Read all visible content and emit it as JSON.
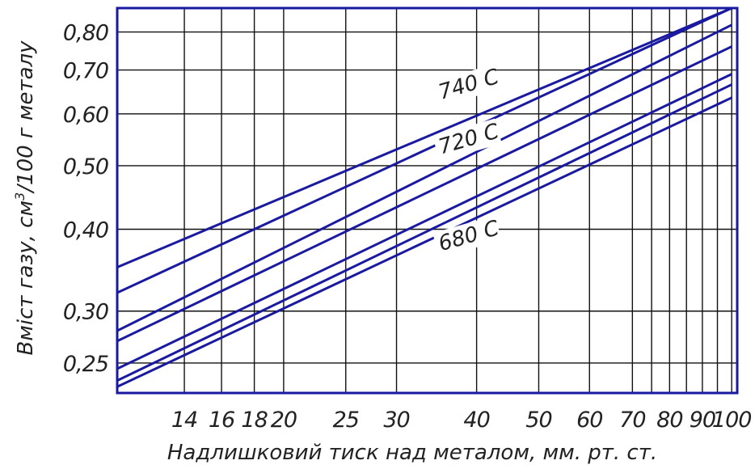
{
  "chart_data": {
    "type": "line",
    "title": "",
    "xlabel": "Надлишковий тиск над металом, мм. рт. ст.",
    "ylabel": "Вміст газу, см³/100 г металу",
    "ylabel_parts": {
      "before": "Вміст газу, см",
      "sup": "3",
      "after": "/100 г металу"
    },
    "x_scale": "log",
    "y_scale": "log",
    "xlim": [
      11,
      102
    ],
    "ylim": [
      0.225,
      0.87
    ],
    "x_ticks": [
      14,
      16,
      18,
      20,
      25,
      30,
      40,
      50,
      60,
      70,
      80,
      90,
      100
    ],
    "x_tick_labels": [
      "14",
      "16",
      "18",
      "20",
      "25",
      "30",
      "40",
      "50",
      "60",
      "70",
      "80",
      "90",
      "100"
    ],
    "x_grid": [
      14,
      16,
      18,
      20,
      25,
      30,
      40,
      50,
      60,
      70,
      75,
      80,
      85,
      90,
      95,
      100
    ],
    "y_ticks": [
      0.25,
      0.3,
      0.4,
      0.5,
      0.6,
      0.7,
      0.8
    ],
    "y_tick_labels": [
      "0,25",
      "0,30",
      "0,40",
      "0,50",
      "0,60",
      "0,70",
      "0,80"
    ],
    "grid": true,
    "legend": "none",
    "line_color": "#1a1aa0",
    "grid_color": "#111111",
    "frame_color": "#1a1aa0",
    "series": [
      {
        "x": [
          11,
          100
        ],
        "y": [
          0.35,
          0.87
        ]
      },
      {
        "x": [
          11,
          100
        ],
        "y": [
          0.32,
          0.87
        ]
      },
      {
        "x": [
          11,
          100
        ],
        "y": [
          0.28,
          0.82
        ]
      },
      {
        "x": [
          11,
          100
        ],
        "y": [
          0.27,
          0.76
        ]
      },
      {
        "x": [
          11,
          100
        ],
        "y": [
          0.245,
          0.69
        ]
      },
      {
        "x": [
          11,
          100
        ],
        "y": [
          0.235,
          0.665
        ]
      },
      {
        "x": [
          11,
          100
        ],
        "y": [
          0.23,
          0.635
        ]
      }
    ],
    "annotations": [
      {
        "text": "740 С",
        "x": 35,
        "y": 0.63
      },
      {
        "text": "720 С",
        "x": 35,
        "y": 0.52
      },
      {
        "text": "680 С",
        "x": 35,
        "y": 0.37
      }
    ]
  }
}
